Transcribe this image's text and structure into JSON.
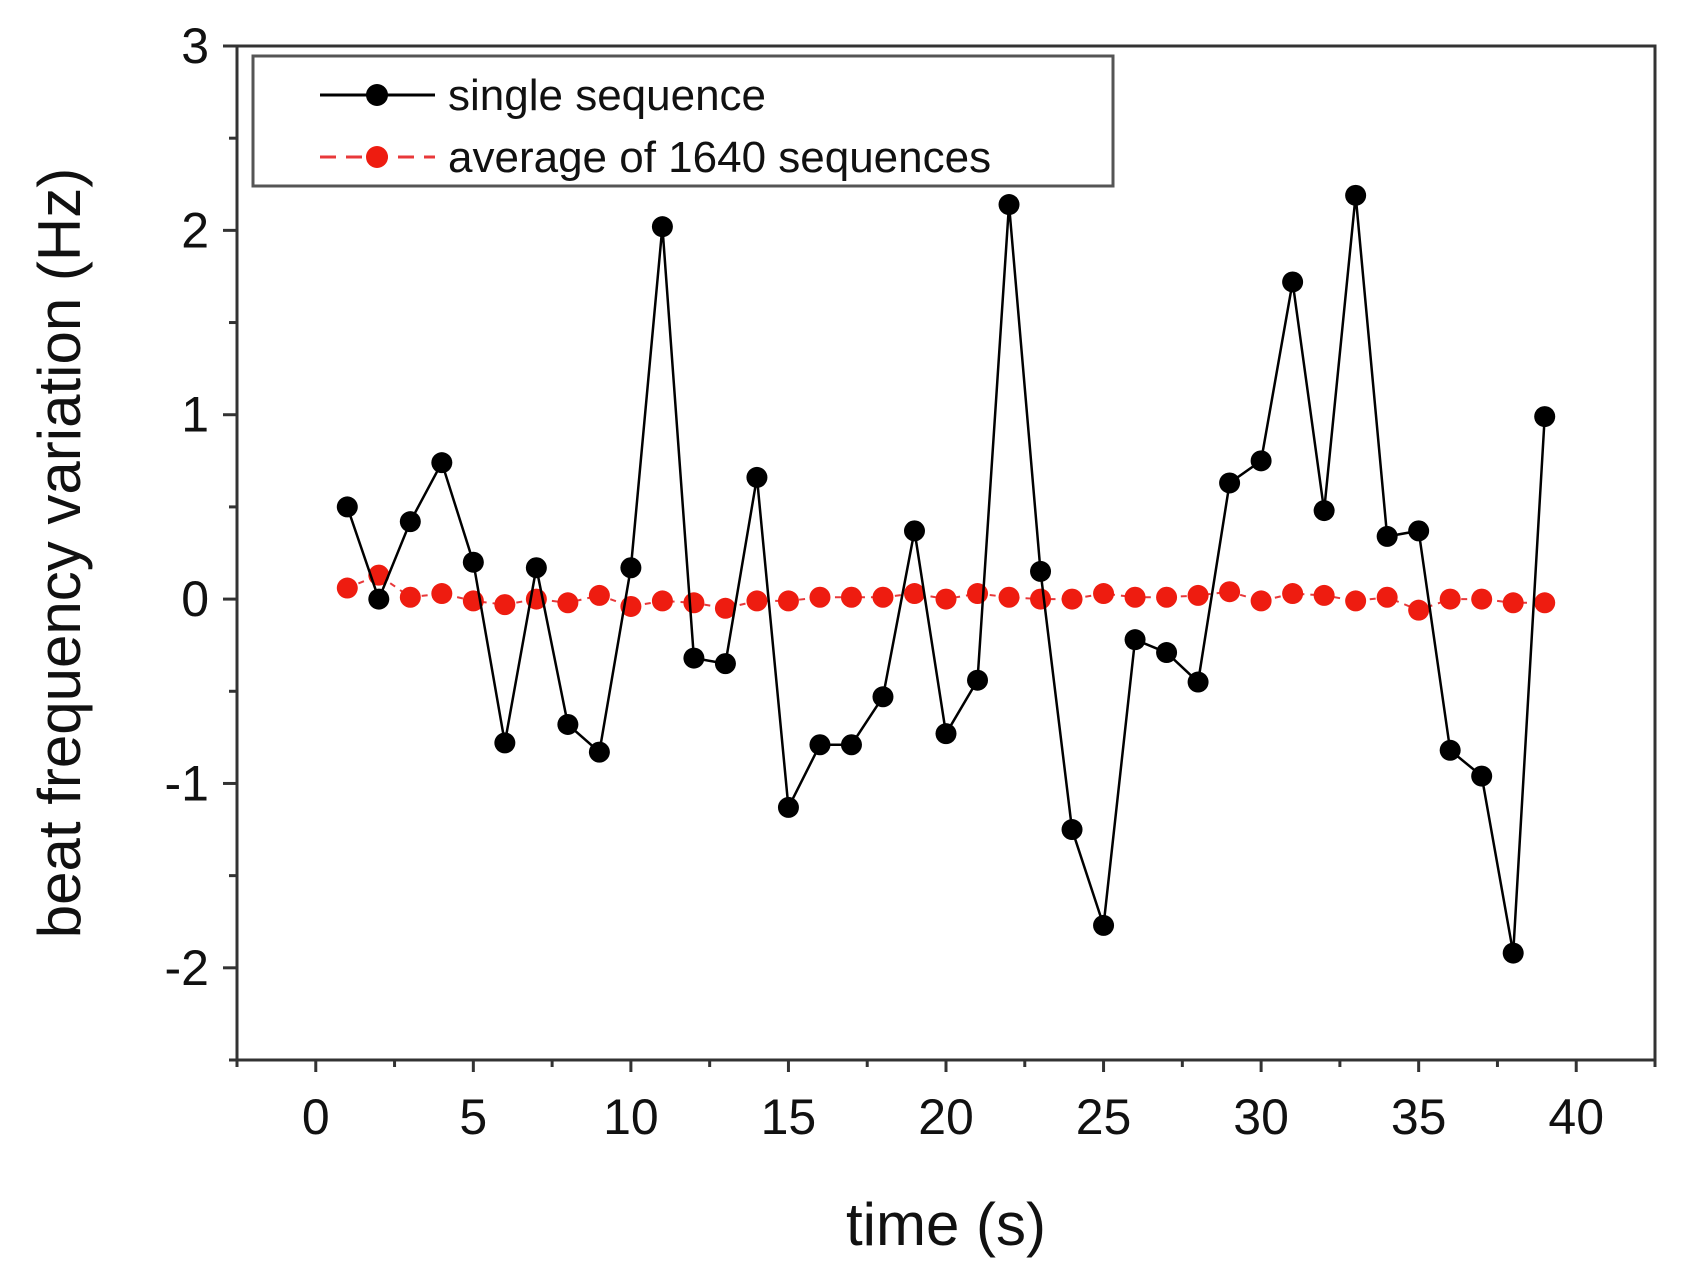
{
  "chart_data": {
    "type": "line",
    "title": "",
    "xlabel": "time (s)",
    "ylabel": "beat frequency variation (Hz)",
    "xlim": [
      -2.5,
      42.5
    ],
    "ylim": [
      -2.5,
      3
    ],
    "xticks": [
      0,
      5,
      10,
      15,
      20,
      25,
      30,
      35,
      40
    ],
    "yticks": [
      -2,
      -1,
      0,
      1,
      2,
      3
    ],
    "xtick_labels": [
      "0",
      "5",
      "10",
      "15",
      "20",
      "25",
      "30",
      "35",
      "40"
    ],
    "ytick_labels": [
      "-2",
      "-1",
      "0",
      "1",
      "2",
      "3"
    ],
    "grid": false,
    "legend_position": "top-left",
    "x": [
      1,
      2,
      3,
      4,
      5,
      6,
      7,
      8,
      9,
      10,
      11,
      12,
      13,
      14,
      15,
      16,
      17,
      18,
      19,
      20,
      21,
      22,
      23,
      24,
      25,
      26,
      27,
      28,
      29,
      30,
      31,
      32,
      33,
      34,
      35,
      36,
      37,
      38,
      39
    ],
    "series": [
      {
        "name": "single sequence",
        "color": "#000000",
        "marker_color": "#000000",
        "values": [
          0.5,
          0.0,
          0.42,
          0.74,
          0.2,
          -0.78,
          0.17,
          -0.68,
          -0.83,
          0.17,
          2.02,
          -0.32,
          -0.35,
          0.66,
          -1.13,
          -0.79,
          -0.79,
          -0.53,
          0.37,
          -0.73,
          -0.44,
          2.14,
          0.15,
          -1.25,
          -1.77,
          -0.22,
          -0.29,
          -0.45,
          0.63,
          0.75,
          1.72,
          0.48,
          2.19,
          0.34,
          0.37,
          -0.82,
          -0.96,
          -1.92,
          0.99
        ]
      },
      {
        "name": "average of 1640 sequences",
        "color": "#e8383a",
        "marker_color": "#ee1c10",
        "values": [
          0.06,
          0.13,
          0.01,
          0.03,
          -0.01,
          -0.03,
          0.0,
          -0.02,
          0.02,
          -0.04,
          -0.01,
          -0.02,
          -0.05,
          -0.01,
          -0.01,
          0.01,
          0.01,
          0.01,
          0.03,
          0.0,
          0.03,
          0.01,
          0.0,
          0.0,
          0.03,
          0.01,
          0.01,
          0.02,
          0.04,
          -0.01,
          0.03,
          0.02,
          -0.01,
          0.01,
          -0.06,
          0.0,
          0.0,
          -0.02,
          -0.02
        ]
      }
    ]
  }
}
